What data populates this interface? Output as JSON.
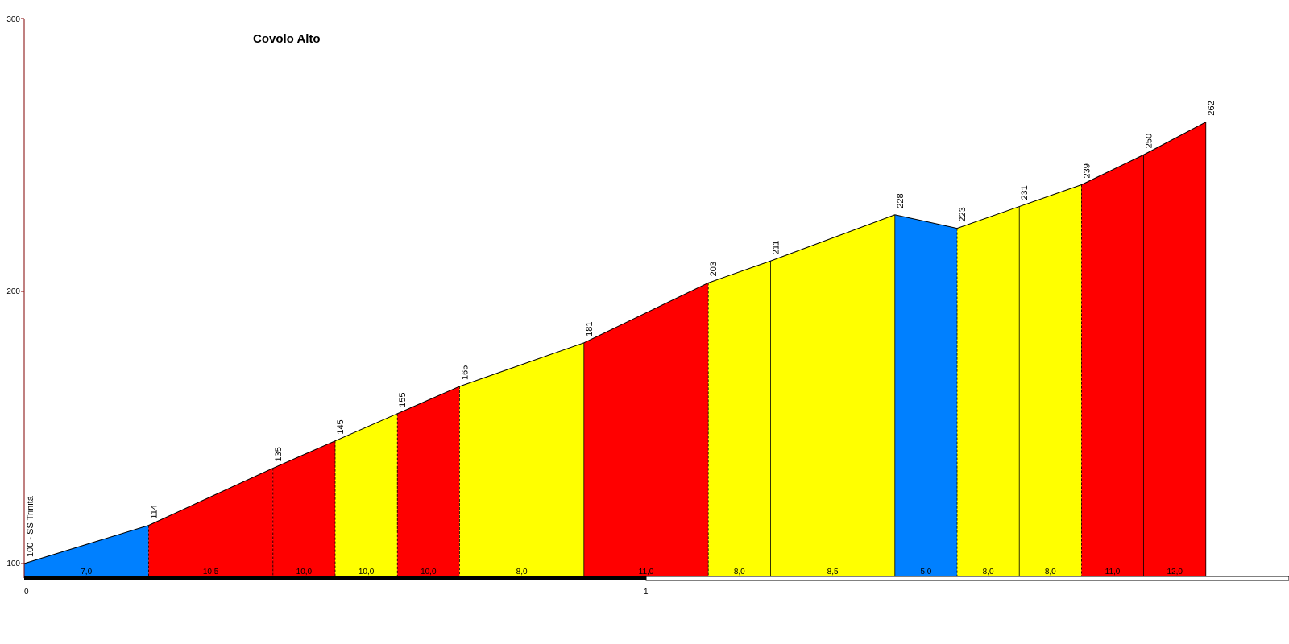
{
  "chart_data": {
    "type": "area",
    "title": "Covolo Alto",
    "xlabel": "",
    "ylabel": "",
    "xlim": [
      0,
      2
    ],
    "ylim": [
      100,
      300
    ],
    "y_ticks": [
      "100",
      "200",
      "300"
    ],
    "x_ticks": [
      "0",
      "1"
    ],
    "start_label": "100 - SS Trinità",
    "points": [
      {
        "x": 0.0,
        "y": 100,
        "label": ""
      },
      {
        "x": 0.2,
        "y": 114,
        "label": "114"
      },
      {
        "x": 0.4,
        "y": 135,
        "label": "135"
      },
      {
        "x": 0.5,
        "y": 145,
        "label": "145"
      },
      {
        "x": 0.6,
        "y": 155,
        "label": "155"
      },
      {
        "x": 0.7,
        "y": 165,
        "label": "165"
      },
      {
        "x": 0.9,
        "y": 181,
        "label": "181"
      },
      {
        "x": 1.1,
        "y": 203,
        "label": "203"
      },
      {
        "x": 1.2,
        "y": 211,
        "label": "211"
      },
      {
        "x": 1.4,
        "y": 228,
        "label": "228"
      },
      {
        "x": 1.5,
        "y": 223,
        "label": "223"
      },
      {
        "x": 1.6,
        "y": 231,
        "label": "231"
      },
      {
        "x": 1.7,
        "y": 239,
        "label": "239"
      },
      {
        "x": 1.8,
        "y": 250,
        "label": "250"
      },
      {
        "x": 1.9,
        "y": 262,
        "label": "262"
      }
    ],
    "segments": [
      {
        "gradient": "7,0",
        "color": "#0080ff"
      },
      {
        "gradient": "10,5",
        "color": "#ff0000"
      },
      {
        "gradient": "10,0",
        "color": "#ff0000"
      },
      {
        "gradient": "10,0",
        "color": "#ffff00"
      },
      {
        "gradient": "10,0",
        "color": "#ff0000"
      },
      {
        "gradient": "8,0",
        "color": "#ffff00"
      },
      {
        "gradient": "11,0",
        "color": "#ff0000"
      },
      {
        "gradient": "8,0",
        "color": "#ffff00"
      },
      {
        "gradient": "8,5",
        "color": "#ffff00"
      },
      {
        "gradient": "5,0",
        "color": "#0080ff"
      },
      {
        "gradient": "8,0",
        "color": "#ffff00"
      },
      {
        "gradient": "8,0",
        "color": "#ffff00"
      },
      {
        "gradient": "11,0",
        "color": "#ff0000"
      },
      {
        "gradient": "12,0",
        "color": "#ff0000"
      }
    ],
    "dashed_dividers_after_segments": [
      1,
      2,
      3,
      4,
      5,
      7,
      10,
      12
    ],
    "grid": false,
    "colors": {
      "axis": "#800000",
      "outline": "#000000"
    }
  }
}
